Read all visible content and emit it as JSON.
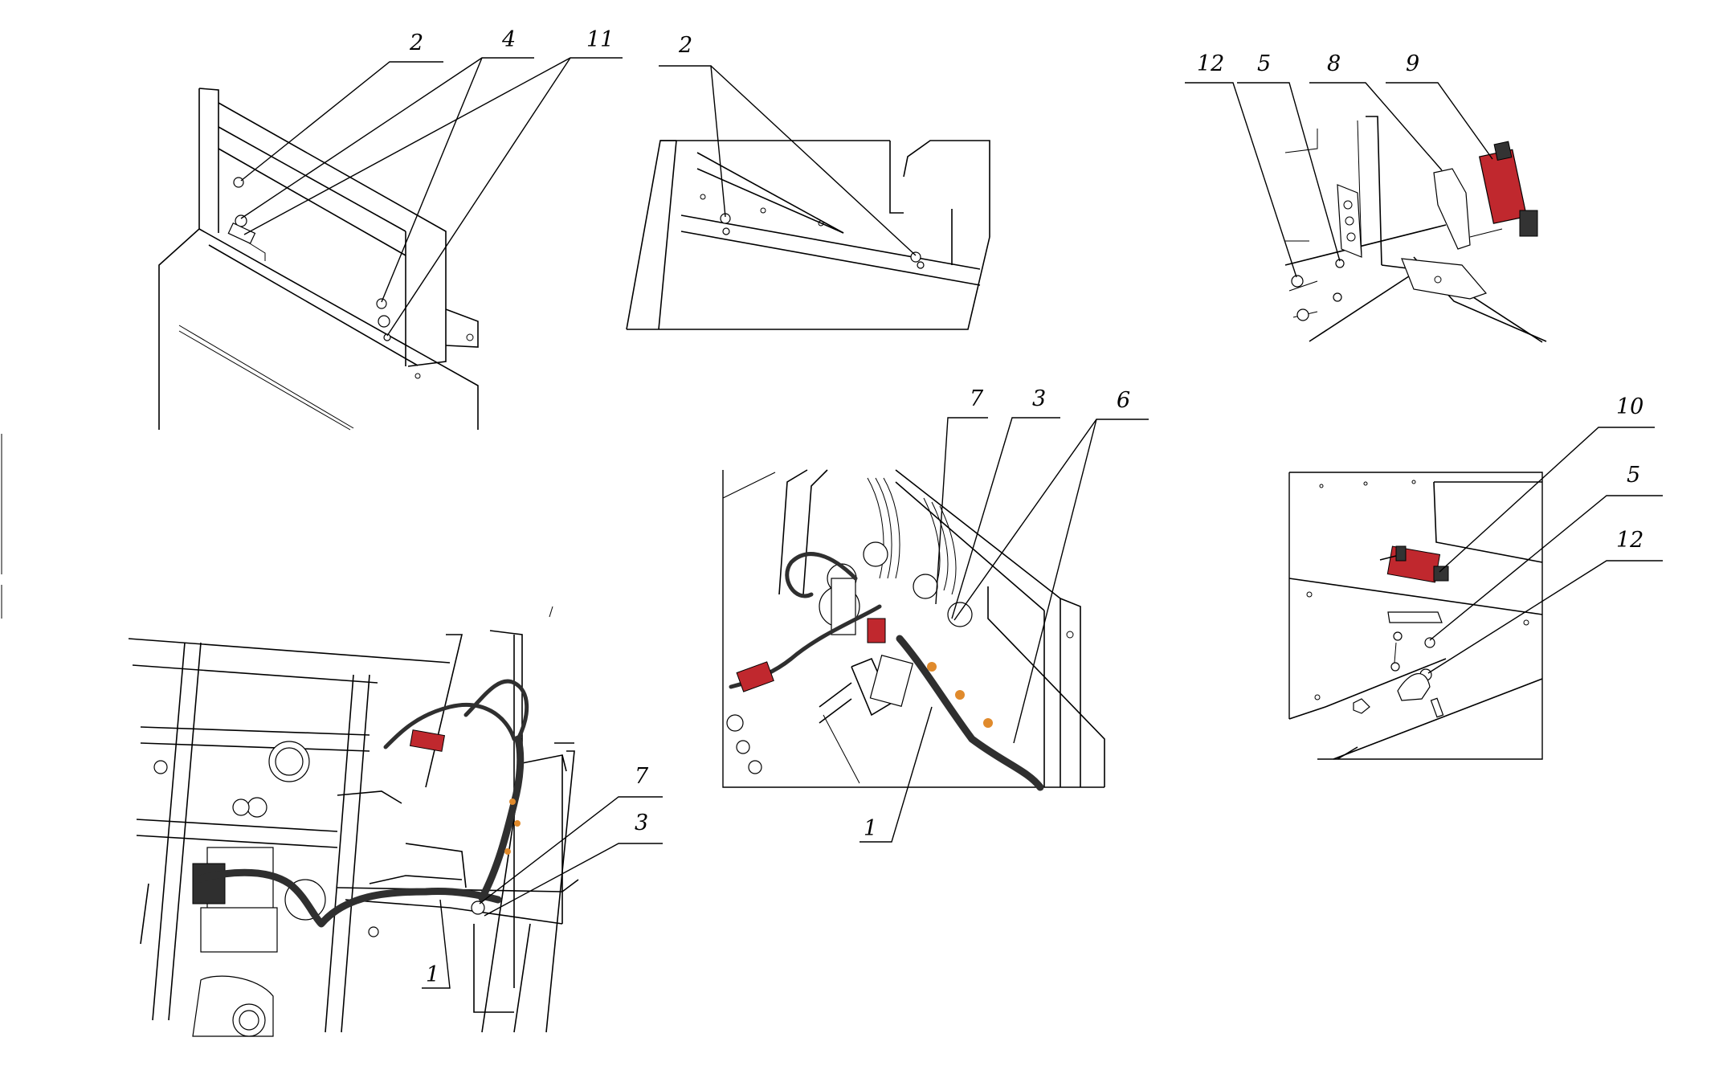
{
  "callouts": {
    "view1": [
      "2",
      "4",
      "11"
    ],
    "view2": [
      "2"
    ],
    "view3": [
      "12",
      "5",
      "8",
      "9"
    ],
    "view4": [
      "7",
      "3",
      "1"
    ],
    "view5": [
      "7",
      "3",
      "6",
      "1"
    ],
    "view6": [
      "10",
      "5",
      "12"
    ]
  },
  "colors": {
    "switch_red": "#c0282e",
    "cable": "#2f2f2f",
    "clip_orange": "#e08a2c",
    "line": "#000000"
  }
}
